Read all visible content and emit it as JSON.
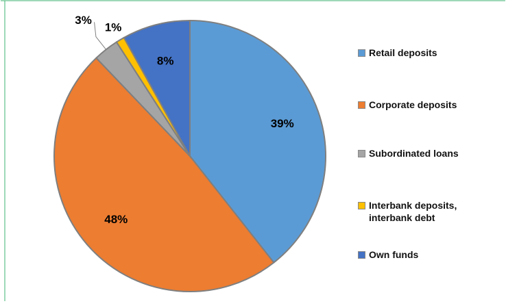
{
  "chart_data": {
    "type": "pie",
    "categories": [
      "Retail deposits",
      "Corporate deposits",
      "Subordinated loans",
      "Interbank deposits, interbank debt",
      "Own funds"
    ],
    "values": [
      39,
      48,
      3,
      1,
      8
    ],
    "colors": [
      "#5b9bd5",
      "#ed7d31",
      "#a5a5a5",
      "#ffc000",
      "#4472c4"
    ],
    "value_labels": [
      "39%",
      "48%",
      "3%",
      "1%",
      "8%"
    ]
  }
}
